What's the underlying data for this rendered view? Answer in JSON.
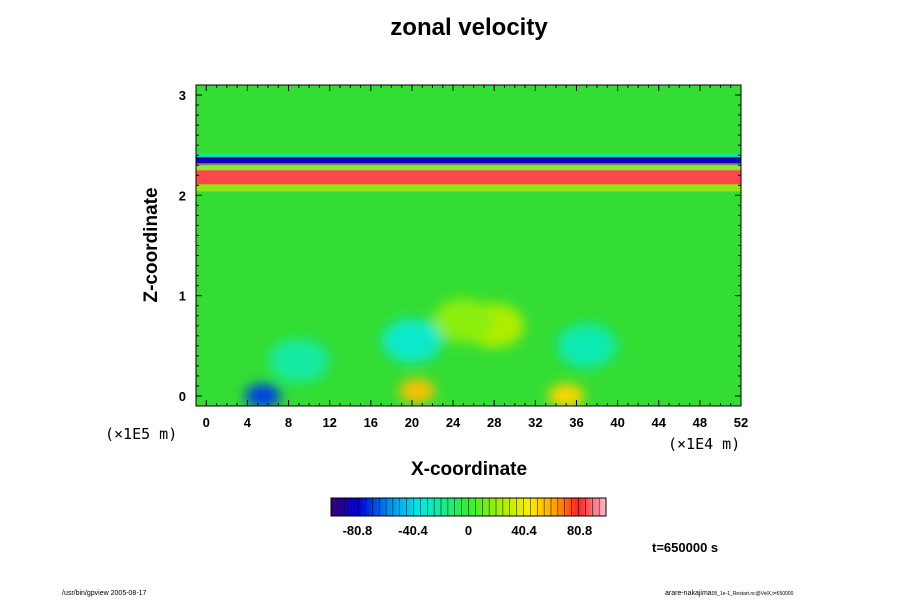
{
  "chart_data": {
    "type": "heatmap",
    "title": "zonal velocity",
    "xlabel": "X-coordinate",
    "ylabel": "Z-coordinate",
    "x_unit": "(×1E4 m)",
    "z_unit": "(×1E5 m)",
    "xlim": [
      -1,
      52
    ],
    "ylim": [
      -0.1,
      3.1
    ],
    "x_ticks": [
      "0",
      "4",
      "8",
      "12",
      "16",
      "20",
      "24",
      "28",
      "32",
      "36",
      "40",
      "44",
      "48",
      "52"
    ],
    "y_ticks": [
      "0",
      "1",
      "2",
      "3"
    ],
    "colorbar": {
      "range": [
        -100,
        100
      ],
      "ticks": [
        "-80.8",
        "-40.4",
        "0",
        "40.4",
        "80.8"
      ],
      "tick_values": [
        -80.8,
        -40.4,
        0,
        40.4,
        80.8
      ]
    },
    "bands": [
      {
        "feature": "strong negative jet",
        "z": 2.34,
        "value": -85
      },
      {
        "feature": "strong positive jet",
        "z": 2.18,
        "value": 85
      }
    ],
    "blobs": [
      {
        "x": 20.5,
        "z": 0.05,
        "value": 55
      },
      {
        "x": 35.0,
        "z": 0.0,
        "value": 50
      },
      {
        "x": 5.5,
        "z": 0.0,
        "value": -70
      },
      {
        "x": 28.0,
        "z": 0.7,
        "value": 25
      },
      {
        "x": 25.0,
        "z": 0.75,
        "value": 18
      },
      {
        "x": 20.0,
        "z": 0.55,
        "value": -30
      },
      {
        "x": 37.0,
        "z": 0.5,
        "value": -25
      },
      {
        "x": 9.0,
        "z": 0.35,
        "value": -22
      }
    ],
    "time_label": "t=650000 s"
  },
  "footer": {
    "left": "/usr/bin/gpview 2005-08-17",
    "right_main": "arare-nakajima",
    "right_small": "05_1e-1_Restart.nc@VelX,t=650000"
  }
}
